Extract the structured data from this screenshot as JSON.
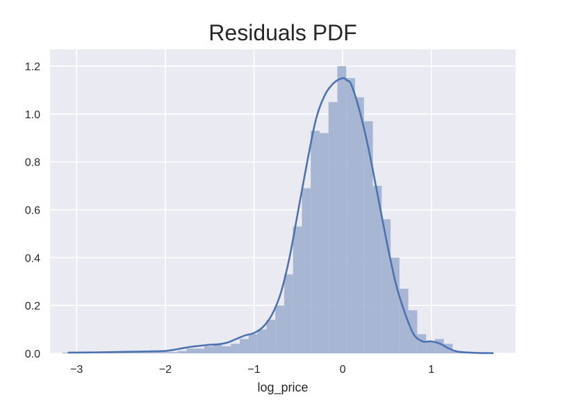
{
  "chart_data": {
    "type": "bar",
    "title": "Residuals PDF",
    "xlabel": "log_price",
    "ylabel": "",
    "xlim": [
      -3.3,
      1.95
    ],
    "ylim": [
      0,
      1.27
    ],
    "grid": true,
    "legend": "none",
    "xticks": [
      -3,
      -2,
      -1,
      0,
      1
    ],
    "xtick_labels": [
      "−3",
      "−2",
      "−1",
      "0",
      "1"
    ],
    "yticks": [
      0.0,
      0.2,
      0.4,
      0.6,
      0.8,
      1.0,
      1.2
    ],
    "ytick_labels": [
      "0.0",
      "0.2",
      "0.4",
      "0.6",
      "0.8",
      "1.0",
      "1.2"
    ],
    "colors": {
      "background": "#eaeaf2",
      "grid": "#ffffff",
      "bars": "#a3b3d1",
      "kde_line": "#4c72b0",
      "text": "#262626"
    },
    "histogram": {
      "bin_edges": [
        -3.16,
        -3.06,
        -2.96,
        -2.86,
        -2.76,
        -2.66,
        -2.56,
        -2.46,
        -2.36,
        -2.26,
        -2.16,
        -2.06,
        -1.96,
        -1.86,
        -1.76,
        -1.66,
        -1.56,
        -1.46,
        -1.36,
        -1.26,
        -1.16,
        -1.06,
        -0.96,
        -0.86,
        -0.76,
        -0.66,
        -0.56,
        -0.46,
        -0.36,
        -0.26,
        -0.16,
        -0.06,
        0.04,
        0.14,
        0.24,
        0.34,
        0.44,
        0.54,
        0.64,
        0.74,
        0.84,
        0.94,
        1.04,
        1.14,
        1.24,
        1.34,
        1.44,
        1.54,
        1.64
      ],
      "densities": [
        0.003,
        0.003,
        0.003,
        0.003,
        0.005,
        0.005,
        0.005,
        0.005,
        0.008,
        0.005,
        0.005,
        0.005,
        0.005,
        0.01,
        0.02,
        0.02,
        0.03,
        0.04,
        0.03,
        0.04,
        0.06,
        0.08,
        0.1,
        0.14,
        0.2,
        0.33,
        0.53,
        0.69,
        0.93,
        0.92,
        1.05,
        1.2,
        1.15,
        1.07,
        0.97,
        0.7,
        0.56,
        0.4,
        0.27,
        0.18,
        0.08,
        0.05,
        0.06,
        0.04,
        0.01,
        0.005,
        0.003,
        0.003
      ]
    },
    "kde": {
      "x": [
        -3.1,
        -2.8,
        -2.5,
        -2.2,
        -2.0,
        -1.9,
        -1.8,
        -1.7,
        -1.6,
        -1.5,
        -1.4,
        -1.3,
        -1.2,
        -1.1,
        -1.0,
        -0.9,
        -0.8,
        -0.7,
        -0.6,
        -0.5,
        -0.4,
        -0.3,
        -0.2,
        -0.1,
        0.0,
        0.05,
        0.1,
        0.2,
        0.3,
        0.4,
        0.5,
        0.6,
        0.7,
        0.8,
        0.9,
        1.0,
        1.1,
        1.2,
        1.3,
        1.5,
        1.7
      ],
      "y": [
        0.003,
        0.004,
        0.006,
        0.008,
        0.01,
        0.015,
        0.022,
        0.028,
        0.032,
        0.036,
        0.038,
        0.045,
        0.06,
        0.075,
        0.085,
        0.11,
        0.16,
        0.25,
        0.4,
        0.6,
        0.8,
        0.98,
        1.08,
        1.13,
        1.15,
        1.14,
        1.12,
        1.0,
        0.84,
        0.65,
        0.46,
        0.29,
        0.17,
        0.08,
        0.05,
        0.05,
        0.04,
        0.02,
        0.007,
        0.002,
        0.001
      ]
    }
  }
}
